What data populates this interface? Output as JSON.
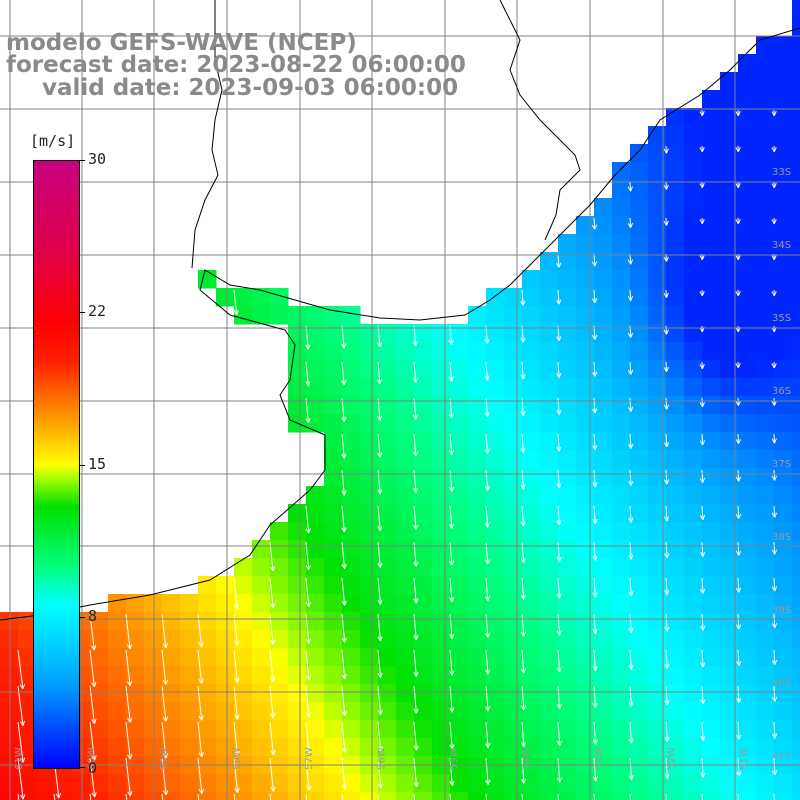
{
  "title": {
    "model": "modelo GEFS-WAVE (NCEP)",
    "forecast": "forecast date: 2023-08-22 06:00:00",
    "valid": "valid date: 2023-09-03 06:00:00"
  },
  "colorbar": {
    "unit": "[m/s]",
    "ticks": [
      {
        "value": 30,
        "label": "30"
      },
      {
        "value": 22,
        "label": "22"
      },
      {
        "value": 15,
        "label": "15"
      },
      {
        "value": 8,
        "label": "8"
      },
      {
        "value": 0,
        "label": "0"
      }
    ],
    "range": [
      0,
      30
    ]
  },
  "map": {
    "lat_labels": [
      "33S",
      "34S",
      "35S",
      "36S",
      "37S",
      "38S",
      "39S",
      "40S",
      "41S"
    ],
    "lon_labels": [
      "61W",
      "60W",
      "59W",
      "58W",
      "57W",
      "56W",
      "55W",
      "54W",
      "53W",
      "52W",
      "51W"
    ],
    "lat_range": [
      -41.5,
      -30.5
    ],
    "lon_range": [
      -61.2,
      -50.1
    ],
    "grid": true,
    "colors": {
      "land": "#ffffff",
      "coast": "#000000",
      "grid": "#808080",
      "vector": "#ffffff",
      "title_text": "#8a8a8a"
    }
  }
}
